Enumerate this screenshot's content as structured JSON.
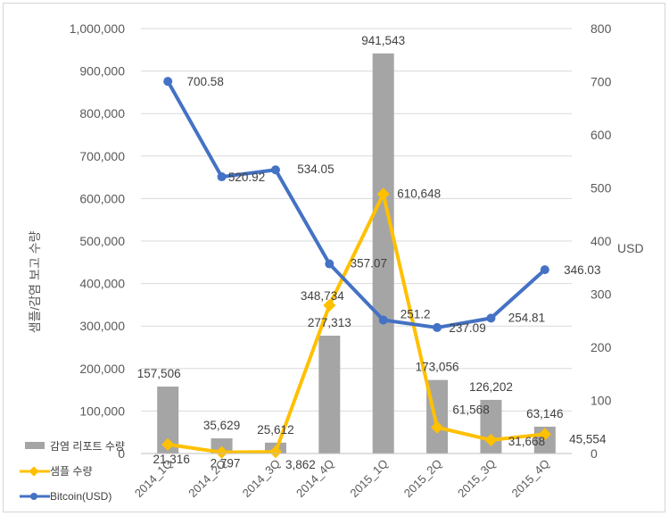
{
  "chart_data": {
    "type": "bar",
    "categories": [
      "2014_1Q",
      "2014_2Q",
      "2014_3Q",
      "2014_4Q",
      "2015_1Q",
      "2015_2Q",
      "2015_3Q",
      "2015_4Q"
    ],
    "series": [
      {
        "name": "감염 리포트 수량",
        "type": "bar",
        "axis": "left",
        "color": "#a5a5a5",
        "values": [
          157506,
          35629,
          25612,
          277313,
          941543,
          173056,
          126202,
          63146
        ],
        "labels": [
          "157,506",
          "35,629",
          "25,612",
          "277,313",
          "941,543",
          "173,056",
          "126,202",
          "63,146"
        ]
      },
      {
        "name": "샘플 수량",
        "type": "line",
        "axis": "left",
        "color": "#ffc000",
        "values": [
          21316,
          2797,
          3862,
          348734,
          610648,
          61568,
          31668,
          45554
        ],
        "labels": [
          "21,316",
          "2,797",
          "3,862",
          "348,734",
          "610,648",
          "61,568",
          "31,668",
          "45,554"
        ]
      },
      {
        "name": "Bitcoin(USD)",
        "type": "line",
        "axis": "right",
        "color": "#4472c4",
        "values": [
          700.58,
          520.92,
          534.05,
          357.07,
          251.2,
          237.09,
          254.81,
          346.03
        ],
        "labels": [
          "700.58",
          "520.92",
          "534.05",
          "357.07",
          "251.2",
          "237.09",
          "254.81",
          "346.03"
        ]
      }
    ],
    "ylabel": "샘플/감염 보고 수량",
    "y2label": "USD",
    "ylim": [
      0,
      1000000
    ],
    "y2lim": [
      0,
      800
    ],
    "yticks": [
      "0",
      "100,000",
      "200,000",
      "300,000",
      "400,000",
      "500,000",
      "600,000",
      "700,000",
      "800,000",
      "900,000",
      "1,000,000"
    ],
    "y2ticks": [
      "0",
      "100",
      "200",
      "300",
      "400",
      "500",
      "600",
      "700",
      "800"
    ],
    "legend_position": "bottom-left",
    "grid": true
  }
}
